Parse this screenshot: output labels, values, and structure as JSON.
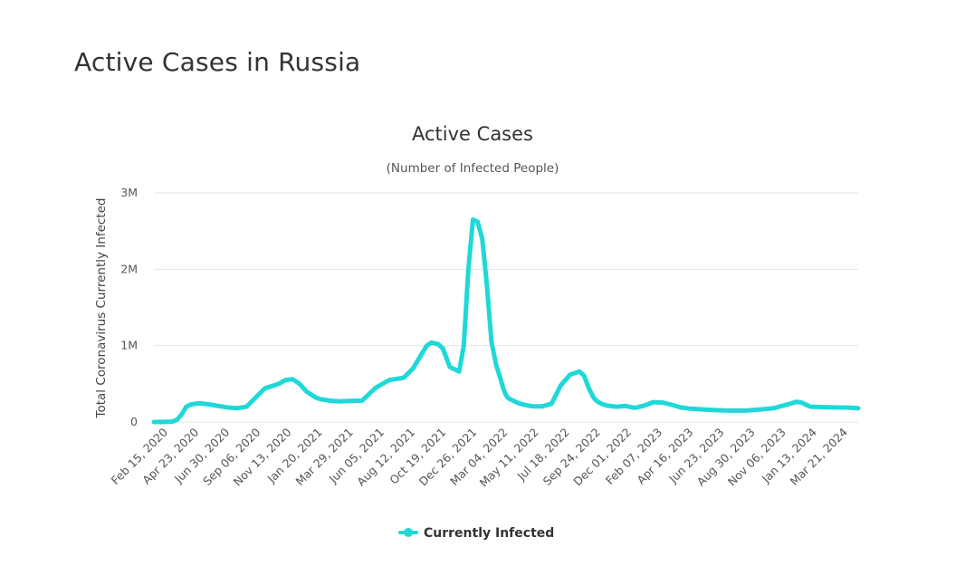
{
  "page": {
    "title": "Active Cases in Russia"
  },
  "chart_data": {
    "type": "line",
    "title": "Active Cases",
    "subtitle": "(Number of Infected People)",
    "ylabel": "Total Coronavirus Currently Infected",
    "xlabel": "",
    "ylim": [
      0,
      3000000
    ],
    "yticks": [
      {
        "value": 0,
        "label": "0"
      },
      {
        "value": 1000000,
        "label": "1M"
      },
      {
        "value": 2000000,
        "label": "2M"
      },
      {
        "value": 3000000,
        "label": "3M"
      }
    ],
    "xtick_labels": [
      "Feb 15, 2020",
      "Apr 23, 2020",
      "Jun 30, 2020",
      "Sep 06, 2020",
      "Nov 13, 2020",
      "Jan 20, 2021",
      "Mar 29, 2021",
      "Jun 05, 2021",
      "Aug 12, 2021",
      "Oct 19, 2021",
      "Dec 26, 2021",
      "Mar 04, 2022",
      "May 11, 2022",
      "Jul 18, 2022",
      "Sep 24, 2022",
      "Dec 01, 2022",
      "Feb 07, 2023",
      "Apr 16, 2023",
      "Jun 23, 2023",
      "Aug 30, 2023",
      "Nov 06, 2023",
      "Jan 13, 2024",
      "Mar 21, 2024"
    ],
    "x_unit": "days since Feb 15, 2020",
    "grid": true,
    "legend": "bottom",
    "colors": {
      "line": "#1fd8d8",
      "grid": "#e6e6e6"
    },
    "series": [
      {
        "name": "Currently Infected",
        "x": [
          0,
          20,
          40,
          50,
          60,
          70,
          80,
          90,
          100,
          120,
          140,
          160,
          180,
          200,
          220,
          240,
          260,
          270,
          285,
          300,
          315,
          330,
          340,
          350,
          360,
          380,
          400,
          420,
          450,
          480,
          500,
          510,
          520,
          540,
          560,
          590,
          600,
          615,
          625,
          640,
          660,
          670,
          680,
          690,
          700,
          710,
          720,
          730,
          740,
          750,
          755,
          760,
          765,
          770,
          775,
          780,
          785,
          790,
          795,
          800,
          810,
          820,
          840,
          860,
          880,
          900,
          920,
          930,
          940,
          950,
          955,
          960,
          970,
          980,
          1000,
          1020,
          1040,
          1060,
          1080,
          1100,
          1120,
          1140,
          1160,
          1200,
          1240,
          1280,
          1320,
          1340,
          1370,
          1390,
          1400,
          1420,
          1450,
          1480,
          1500,
          1523
        ],
        "y": [
          0,
          1000,
          5000,
          30000,
          100000,
          200000,
          230000,
          240000,
          245000,
          230000,
          210000,
          190000,
          180000,
          200000,
          320000,
          440000,
          480000,
          500000,
          550000,
          560000,
          500000,
          400000,
          360000,
          320000,
          300000,
          280000,
          270000,
          275000,
          280000,
          450000,
          520000,
          550000,
          560000,
          580000,
          700000,
          1000000,
          1040000,
          1020000,
          960000,
          720000,
          660000,
          1000000,
          2000000,
          2650000,
          2620000,
          2400000,
          1800000,
          1050000,
          750000,
          560000,
          450000,
          370000,
          320000,
          300000,
          285000,
          270000,
          255000,
          245000,
          235000,
          228000,
          215000,
          205000,
          205000,
          240000,
          480000,
          620000,
          660000,
          610000,
          450000,
          330000,
          290000,
          265000,
          235000,
          215000,
          200000,
          210000,
          185000,
          215000,
          260000,
          255000,
          225000,
          190000,
          175000,
          160000,
          150000,
          150000,
          170000,
          180000,
          230000,
          265000,
          255000,
          200000,
          195000,
          190000,
          190000,
          180000
        ]
      }
    ]
  }
}
